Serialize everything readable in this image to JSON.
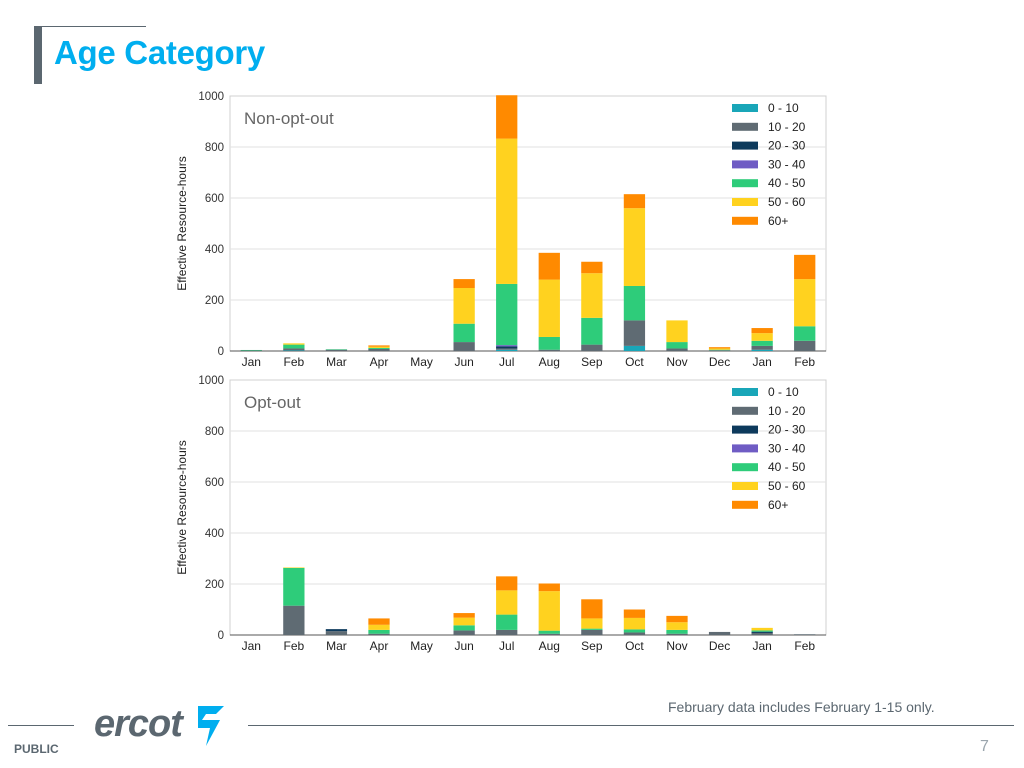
{
  "page": {
    "title": "Age Category",
    "footnote": "February data includes February 1-15 only.",
    "footer_label": "PUBLIC",
    "page_number": "7",
    "logo_text": "ercot"
  },
  "colors": {
    "accent": "#00aeef",
    "text_gray": "#5b6770",
    "series": [
      "#19a6b8",
      "#5f6b73",
      "#0d3a5c",
      "#6f5cc4",
      "#2ecc7a",
      "#ffd21f",
      "#ff8a00"
    ]
  },
  "chart_data": [
    {
      "type": "bar",
      "stacked": true,
      "title": "Non-opt-out",
      "ylabel": "Effective Resource-hours",
      "xlabel": "",
      "ylim": [
        0,
        1000
      ],
      "yticks": [
        0,
        200,
        400,
        600,
        800,
        1000
      ],
      "legend_position": "top-right",
      "categories": [
        "Jan",
        "Feb",
        "Mar",
        "Apr",
        "May",
        "Jun",
        "Jul",
        "Aug",
        "Sep",
        "Oct",
        "Nov",
        "Dec",
        "Jan",
        "Feb"
      ],
      "series": [
        {
          "name": "0 - 10",
          "values": [
            0,
            2,
            0,
            0,
            0,
            0,
            5,
            0,
            0,
            20,
            0,
            0,
            5,
            0
          ]
        },
        {
          "name": "10 - 20",
          "values": [
            2,
            8,
            5,
            8,
            0,
            35,
            5,
            5,
            25,
            100,
            10,
            3,
            15,
            40
          ]
        },
        {
          "name": "20 - 30",
          "values": [
            0,
            0,
            0,
            0,
            0,
            0,
            8,
            0,
            0,
            0,
            0,
            0,
            0,
            0
          ]
        },
        {
          "name": "30 - 40",
          "values": [
            0,
            0,
            0,
            0,
            0,
            0,
            5,
            0,
            0,
            0,
            0,
            0,
            0,
            0
          ]
        },
        {
          "name": "40 - 50",
          "values": [
            2,
            15,
            2,
            4,
            0,
            72,
            240,
            50,
            105,
            135,
            25,
            2,
            20,
            57
          ]
        },
        {
          "name": "50 - 60",
          "values": [
            0,
            5,
            0,
            5,
            0,
            140,
            570,
            225,
            175,
            305,
            85,
            5,
            30,
            185
          ]
        },
        {
          "name": "60+",
          "values": [
            0,
            0,
            0,
            5,
            0,
            35,
            170,
            105,
            45,
            55,
            0,
            5,
            20,
            95
          ]
        }
      ]
    },
    {
      "type": "bar",
      "stacked": true,
      "title": "Opt-out",
      "ylabel": "Effective Resource-hours",
      "xlabel": "",
      "ylim": [
        0,
        1000
      ],
      "yticks": [
        0,
        200,
        400,
        600,
        800,
        1000
      ],
      "legend_position": "top-right",
      "categories": [
        "Jan",
        "Feb",
        "Mar",
        "Apr",
        "May",
        "Jun",
        "Jul",
        "Aug",
        "Sep",
        "Oct",
        "Nov",
        "Dec",
        "Jan",
        "Feb"
      ],
      "series": [
        {
          "name": "0 - 10",
          "values": [
            0,
            0,
            0,
            0,
            0,
            0,
            0,
            0,
            0,
            0,
            0,
            0,
            0,
            0
          ]
        },
        {
          "name": "10 - 20",
          "values": [
            0,
            115,
            15,
            5,
            0,
            18,
            20,
            5,
            20,
            10,
            5,
            12,
            8,
            3
          ]
        },
        {
          "name": "20 - 30",
          "values": [
            0,
            0,
            8,
            0,
            0,
            0,
            0,
            0,
            0,
            0,
            0,
            0,
            5,
            0
          ]
        },
        {
          "name": "30 - 40",
          "values": [
            0,
            0,
            0,
            0,
            0,
            0,
            0,
            0,
            0,
            0,
            0,
            0,
            0,
            0
          ]
        },
        {
          "name": "40 - 50",
          "values": [
            0,
            148,
            0,
            15,
            0,
            20,
            60,
            12,
            5,
            12,
            15,
            0,
            5,
            0
          ]
        },
        {
          "name": "50 - 60",
          "values": [
            0,
            2,
            0,
            20,
            0,
            30,
            95,
            155,
            40,
            45,
            30,
            0,
            10,
            0
          ]
        },
        {
          "name": "60+",
          "values": [
            0,
            0,
            0,
            25,
            0,
            18,
            55,
            30,
            75,
            33,
            25,
            0,
            0,
            0
          ]
        }
      ]
    }
  ]
}
